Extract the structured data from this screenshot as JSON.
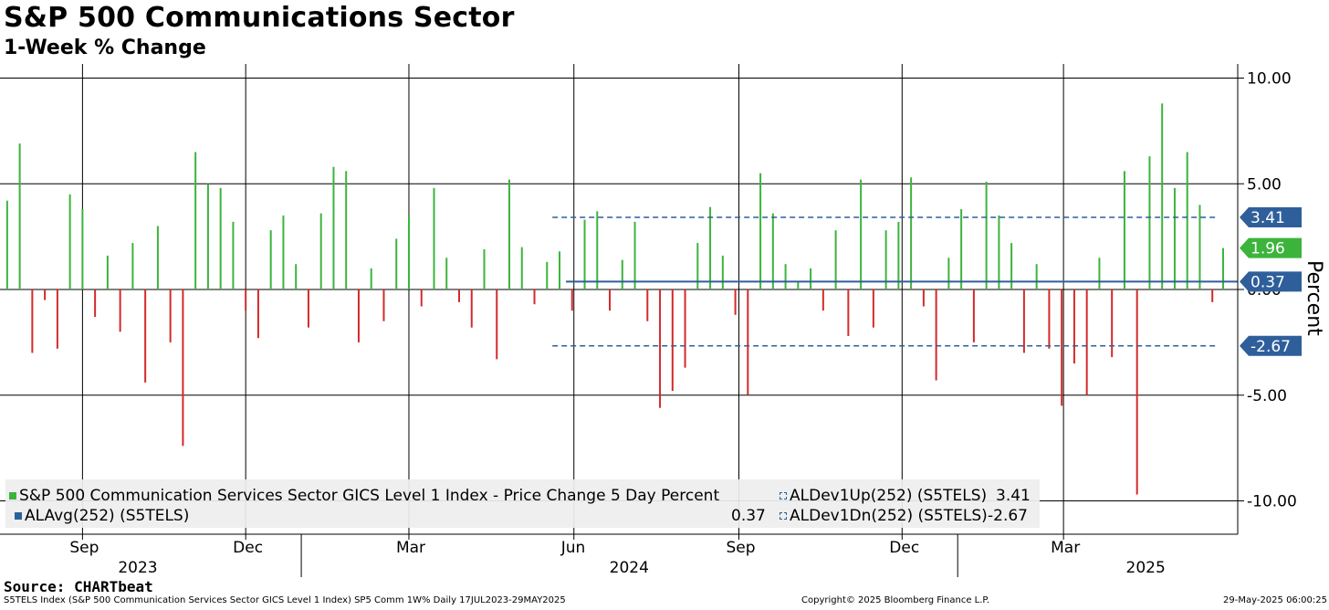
{
  "header": {
    "title": "S&P 500 Communications Sector",
    "subtitle": "1-Week % Change"
  },
  "chart_data": {
    "type": "bar",
    "title": "S&P 500 Communications Sector",
    "subtitle": "1-Week % Change",
    "ylabel": "Percent",
    "ylim": [
      -11.5,
      10.0
    ],
    "y_ticks": [
      10.0,
      5.0,
      0.0,
      -5.0,
      -10.0
    ],
    "y_tick_labels": [
      "10.00",
      "5.00",
      "0.00",
      "-5.00",
      "-10.00"
    ],
    "x_range": [
      "2023-07-17",
      "2025-05-29"
    ],
    "x_month_ticks": [
      {
        "date": "2023-09-01",
        "label": "Sep"
      },
      {
        "date": "2023-12-01",
        "label": "Dec"
      },
      {
        "date": "2024-03-01",
        "label": "Mar"
      },
      {
        "date": "2024-06-01",
        "label": "Jun"
      },
      {
        "date": "2024-09-01",
        "label": "Sep"
      },
      {
        "date": "2024-12-01",
        "label": "Dec"
      },
      {
        "date": "2025-03-01",
        "label": "Mar"
      }
    ],
    "x_year_labels": [
      {
        "date": "2023-10-01",
        "label": "2023"
      },
      {
        "date": "2024-07-01",
        "label": "2024"
      },
      {
        "date": "2025-04-15",
        "label": "2025"
      }
    ],
    "x_year_separators": [
      "2024-01-01",
      "2025-01-01"
    ],
    "grid": true,
    "legend_placement": "bottom-left",
    "series": [
      {
        "name": "S&P 500 Communication Services Sector GICS Level 1 Index - Price Change 5 Day Percent",
        "positive_color": "#3cb43c",
        "negative_color": "#d42a2a",
        "last_value": 1.96,
        "weekly_values": [
          {
            "date": "2023-07-21",
            "value": 4.2
          },
          {
            "date": "2023-07-28",
            "value": 6.9
          },
          {
            "date": "2023-08-04",
            "value": -3.0
          },
          {
            "date": "2023-08-11",
            "value": -0.5
          },
          {
            "date": "2023-08-18",
            "value": -2.8
          },
          {
            "date": "2023-08-25",
            "value": 4.5
          },
          {
            "date": "2023-09-01",
            "value": 3.8
          },
          {
            "date": "2023-09-08",
            "value": -1.3
          },
          {
            "date": "2023-09-15",
            "value": 1.6
          },
          {
            "date": "2023-09-22",
            "value": -2.0
          },
          {
            "date": "2023-09-29",
            "value": 2.2
          },
          {
            "date": "2023-10-06",
            "value": -4.4
          },
          {
            "date": "2023-10-13",
            "value": 3.0
          },
          {
            "date": "2023-10-20",
            "value": -2.5
          },
          {
            "date": "2023-10-27",
            "value": -7.4
          },
          {
            "date": "2023-11-03",
            "value": 6.5
          },
          {
            "date": "2023-11-10",
            "value": 5.0
          },
          {
            "date": "2023-11-17",
            "value": 4.8
          },
          {
            "date": "2023-11-24",
            "value": 3.2
          },
          {
            "date": "2023-12-01",
            "value": -1.0
          },
          {
            "date": "2023-12-08",
            "value": -2.3
          },
          {
            "date": "2023-12-15",
            "value": 2.8
          },
          {
            "date": "2023-12-22",
            "value": 3.5
          },
          {
            "date": "2023-12-29",
            "value": 1.2
          },
          {
            "date": "2024-01-05",
            "value": -1.8
          },
          {
            "date": "2024-01-12",
            "value": 3.6
          },
          {
            "date": "2024-01-19",
            "value": 5.8
          },
          {
            "date": "2024-01-26",
            "value": 5.6
          },
          {
            "date": "2024-02-02",
            "value": -2.5
          },
          {
            "date": "2024-02-09",
            "value": 1.0
          },
          {
            "date": "2024-02-16",
            "value": -1.5
          },
          {
            "date": "2024-02-23",
            "value": 2.4
          },
          {
            "date": "2024-03-01",
            "value": 3.5
          },
          {
            "date": "2024-03-08",
            "value": -0.8
          },
          {
            "date": "2024-03-15",
            "value": 4.8
          },
          {
            "date": "2024-03-22",
            "value": 1.5
          },
          {
            "date": "2024-03-29",
            "value": -0.6
          },
          {
            "date": "2024-04-05",
            "value": -1.8
          },
          {
            "date": "2024-04-12",
            "value": 1.9
          },
          {
            "date": "2024-04-19",
            "value": -3.3
          },
          {
            "date": "2024-04-26",
            "value": 5.2
          },
          {
            "date": "2024-05-03",
            "value": 2.0
          },
          {
            "date": "2024-05-10",
            "value": -0.7
          },
          {
            "date": "2024-05-17",
            "value": 1.3
          },
          {
            "date": "2024-05-24",
            "value": 1.8
          },
          {
            "date": "2024-05-31",
            "value": -1.0
          },
          {
            "date": "2024-06-07",
            "value": 3.3
          },
          {
            "date": "2024-06-14",
            "value": 3.7
          },
          {
            "date": "2024-06-21",
            "value": -1.0
          },
          {
            "date": "2024-06-28",
            "value": 1.4
          },
          {
            "date": "2024-07-05",
            "value": 3.2
          },
          {
            "date": "2024-07-12",
            "value": -1.5
          },
          {
            "date": "2024-07-19",
            "value": -5.6
          },
          {
            "date": "2024-07-26",
            "value": -4.8
          },
          {
            "date": "2024-08-02",
            "value": -3.7
          },
          {
            "date": "2024-08-09",
            "value": 2.2
          },
          {
            "date": "2024-08-16",
            "value": 3.9
          },
          {
            "date": "2024-08-23",
            "value": 1.6
          },
          {
            "date": "2024-08-30",
            "value": -1.2
          },
          {
            "date": "2024-09-06",
            "value": -5.0
          },
          {
            "date": "2024-09-13",
            "value": 5.5
          },
          {
            "date": "2024-09-20",
            "value": 3.6
          },
          {
            "date": "2024-09-27",
            "value": 1.2
          },
          {
            "date": "2024-10-04",
            "value": 0.4
          },
          {
            "date": "2024-10-11",
            "value": 1.0
          },
          {
            "date": "2024-10-18",
            "value": -1.0
          },
          {
            "date": "2024-10-25",
            "value": 2.8
          },
          {
            "date": "2024-11-01",
            "value": -2.2
          },
          {
            "date": "2024-11-08",
            "value": 5.2
          },
          {
            "date": "2024-11-15",
            "value": -1.8
          },
          {
            "date": "2024-11-22",
            "value": 2.8
          },
          {
            "date": "2024-11-29",
            "value": 3.2
          },
          {
            "date": "2024-12-06",
            "value": 5.3
          },
          {
            "date": "2024-12-13",
            "value": -0.8
          },
          {
            "date": "2024-12-20",
            "value": -4.3
          },
          {
            "date": "2024-12-27",
            "value": 1.5
          },
          {
            "date": "2025-01-03",
            "value": 3.8
          },
          {
            "date": "2025-01-10",
            "value": -2.5
          },
          {
            "date": "2025-01-17",
            "value": 5.1
          },
          {
            "date": "2025-01-24",
            "value": 3.5
          },
          {
            "date": "2025-01-31",
            "value": 2.2
          },
          {
            "date": "2025-02-07",
            "value": -3.0
          },
          {
            "date": "2025-02-14",
            "value": 1.2
          },
          {
            "date": "2025-02-21",
            "value": -2.8
          },
          {
            "date": "2025-02-28",
            "value": -5.5
          },
          {
            "date": "2025-03-07",
            "value": -3.5
          },
          {
            "date": "2025-03-14",
            "value": -5.0
          },
          {
            "date": "2025-03-21",
            "value": 1.5
          },
          {
            "date": "2025-03-28",
            "value": -3.2
          },
          {
            "date": "2025-04-04",
            "value": 5.6
          },
          {
            "date": "2025-04-11",
            "value": -9.7
          },
          {
            "date": "2025-04-18",
            "value": 6.3
          },
          {
            "date": "2025-04-25",
            "value": 8.8
          },
          {
            "date": "2025-05-02",
            "value": 4.8
          },
          {
            "date": "2025-05-09",
            "value": 6.5
          },
          {
            "date": "2025-05-16",
            "value": 4.0
          },
          {
            "date": "2025-05-23",
            "value": -0.6
          },
          {
            "date": "2025-05-29",
            "value": 1.96
          }
        ]
      },
      {
        "name": "ALAvg(252) (S5TELS)",
        "value": 0.37,
        "value_label": "0.37",
        "color": "#2f5f9b"
      },
      {
        "name": "ALDev1Up(252) (S5TELS)",
        "value": 3.41,
        "value_label": "3.41",
        "color": "#2f5f9b",
        "line_start": "2024-05-20"
      },
      {
        "name": "ALDev1Dn(252) (S5TELS)",
        "value": -2.67,
        "value_label": "-2.67",
        "color": "#2f5f9b",
        "line_start": "2024-05-20"
      }
    ],
    "value_tags": [
      {
        "label": "3.41",
        "value": 3.41,
        "color": "#2f5f9b"
      },
      {
        "label": "1.96",
        "value": 1.96,
        "color": "#3cb43c"
      },
      {
        "label": "0.37",
        "value": 0.37,
        "color": "#2f5f9b"
      },
      {
        "label": "-2.67",
        "value": -2.67,
        "color": "#2f5f9b"
      }
    ]
  },
  "legend": {
    "series1": "S&P 500 Communication Services Sector GICS Level 1 Index - Price Change 5 Day Percent",
    "avg": "ALAvg(252) (S5TELS)",
    "avg_value": "0.37",
    "dev_up": "ALDev1Up(252) (S5TELS)",
    "dev_up_value": "3.41",
    "dev_dn": "ALDev1Dn(252) (S5TELS)",
    "dev_dn_value": "-2.67"
  },
  "footer": {
    "source": "Source: CHARTbeat",
    "description": "S5TELS Index (S&P 500 Communication Services Sector GICS Level 1 Index) SP5 Comm 1W%  Daily 17JUL2023-29MAY2025",
    "copyright": "Copyright© 2025 Bloomberg Finance L.P.",
    "timestamp": "29-May-2025 06:00:25"
  }
}
